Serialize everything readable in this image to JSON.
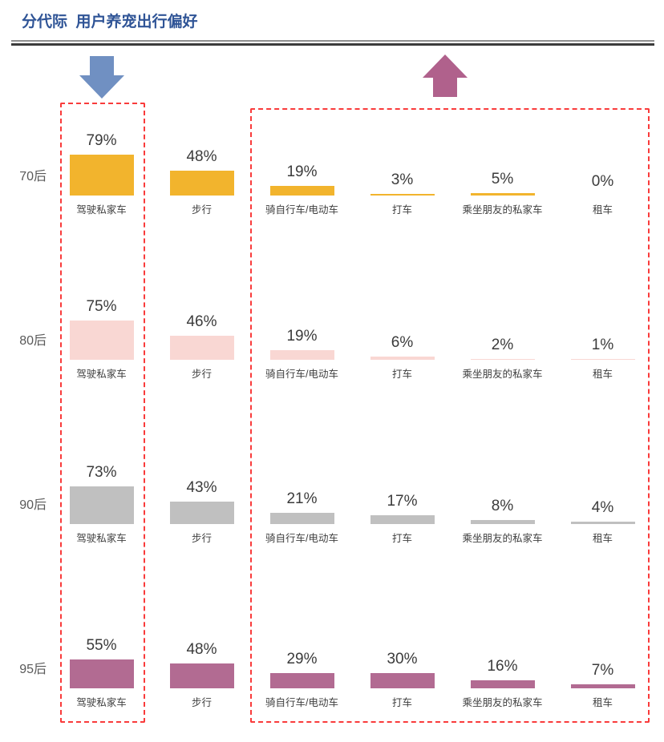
{
  "header": {
    "title": "分代际  用户养宠出行偏好"
  },
  "annotations": {
    "down_arrow_color": "#7090C2",
    "up_arrow_color": "#B0618C",
    "highlight_border_color": "#F93B3B"
  },
  "chart_data": {
    "type": "bar",
    "title": "分代际 用户养宠出行偏好",
    "unit": "%",
    "ylim": [
      0,
      100
    ],
    "grid": false,
    "legend_position": "none",
    "layout": "four generation rows of small-multiple bars, bottom-aligned baseline per row, value label above each bar, category label below",
    "categories": [
      "驾驶私家车",
      "步行",
      "骑自行车/电动车",
      "打车",
      "乘坐朋友的私家车",
      "租车"
    ],
    "series": [
      {
        "name": "70后",
        "color": "#F2B42D",
        "values": [
          79,
          48,
          19,
          3,
          5,
          0
        ],
        "labels": [
          "79%",
          "48%",
          "19%",
          "3%",
          "5%",
          "0%"
        ]
      },
      {
        "name": "80后",
        "color": "#F9D7D3",
        "values": [
          75,
          46,
          19,
          6,
          2,
          1
        ],
        "labels": [
          "75%",
          "46%",
          "19%",
          "6%",
          "2%",
          "1%"
        ]
      },
      {
        "name": "90后",
        "color": "#C0C0C0",
        "values": [
          73,
          43,
          21,
          17,
          8,
          4
        ],
        "labels": [
          "73%",
          "43%",
          "21%",
          "17%",
          "8%",
          "4%"
        ]
      },
      {
        "name": "95后",
        "color": "#B26B92",
        "values": [
          55,
          48,
          29,
          30,
          16,
          7
        ],
        "labels": [
          "55%",
          "48%",
          "29%",
          "30%",
          "16%",
          "7%"
        ]
      }
    ],
    "highlights": {
      "box1_over_category": "驾驶私家车",
      "box2_over_categories": [
        "骑自行车/电动车",
        "打车",
        "乘坐朋友的私家车",
        "租车"
      ]
    }
  }
}
